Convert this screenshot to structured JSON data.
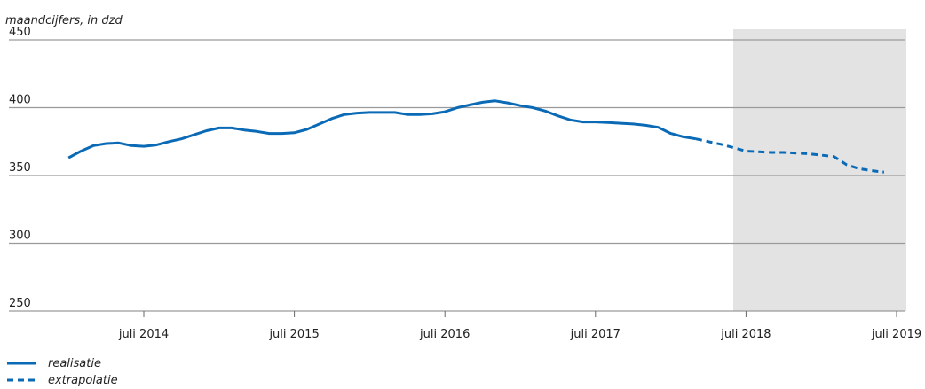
{
  "chart_data": {
    "type": "line",
    "unit_label": "maandcijfers, in dzd",
    "ylim": [
      250,
      450
    ],
    "yticks": [
      250,
      300,
      350,
      400,
      450
    ],
    "xlim": [
      "2013-12",
      "2019-07"
    ],
    "xticks": [
      {
        "label": "juli 2014",
        "date": "2014-07"
      },
      {
        "label": "juli 2015",
        "date": "2015-07"
      },
      {
        "label": "juli 2016",
        "date": "2016-07"
      },
      {
        "label": "juli 2017",
        "date": "2017-07"
      },
      {
        "label": "juli 2018",
        "date": "2018-07"
      },
      {
        "label": "juli 2019",
        "date": "2019-07"
      }
    ],
    "shaded_region": {
      "from": "2018-07",
      "to": "2019-07",
      "color": "#e3e3e3"
    },
    "grid": true,
    "legend_position": "bottom-left",
    "series": [
      {
        "name": "realisatie",
        "style": "solid",
        "color": "#0a6ab6",
        "points": [
          [
            "2014-01",
            363
          ],
          [
            "2014-02",
            368
          ],
          [
            "2014-03",
            372
          ],
          [
            "2014-04",
            373.5
          ],
          [
            "2014-05",
            374
          ],
          [
            "2014-06",
            372
          ],
          [
            "2014-07",
            371.5
          ],
          [
            "2014-08",
            372.5
          ],
          [
            "2014-09",
            375
          ],
          [
            "2014-10",
            377
          ],
          [
            "2014-11",
            380
          ],
          [
            "2014-12",
            383
          ],
          [
            "2015-01",
            385
          ],
          [
            "2015-02",
            385
          ],
          [
            "2015-03",
            383.5
          ],
          [
            "2015-04",
            382.5
          ],
          [
            "2015-05",
            381
          ],
          [
            "2015-06",
            381
          ],
          [
            "2015-07",
            381.5
          ],
          [
            "2015-08",
            384
          ],
          [
            "2015-09",
            388
          ],
          [
            "2015-10",
            392
          ],
          [
            "2015-11",
            395
          ],
          [
            "2015-12",
            396
          ],
          [
            "2016-01",
            396.5
          ],
          [
            "2016-02",
            396.5
          ],
          [
            "2016-03",
            396.5
          ],
          [
            "2016-04",
            395
          ],
          [
            "2016-05",
            395
          ],
          [
            "2016-06",
            395.5
          ],
          [
            "2016-07",
            397
          ],
          [
            "2016-08",
            400
          ],
          [
            "2016-09",
            402
          ],
          [
            "2016-10",
            404
          ],
          [
            "2016-11",
            405
          ],
          [
            "2016-12",
            403.5
          ],
          [
            "2017-01",
            401.5
          ],
          [
            "2017-02",
            400
          ],
          [
            "2017-03",
            397.5
          ],
          [
            "2017-04",
            394
          ],
          [
            "2017-05",
            391
          ],
          [
            "2017-06",
            389.5
          ],
          [
            "2017-07",
            389.5
          ],
          [
            "2017-08",
            389
          ],
          [
            "2017-09",
            388.5
          ],
          [
            "2017-10",
            388
          ],
          [
            "2017-11",
            387
          ],
          [
            "2017-12",
            385.5
          ],
          [
            "2018-01",
            381
          ],
          [
            "2018-02",
            378.5
          ],
          [
            "2018-03",
            377
          ]
        ]
      },
      {
        "name": "extrapolatie",
        "style": "dashed",
        "color": "#0a6ab6",
        "points": [
          [
            "2018-03",
            377
          ],
          [
            "2018-04",
            375
          ],
          [
            "2018-05",
            373
          ],
          [
            "2018-06",
            370.5
          ],
          [
            "2018-07",
            368
          ],
          [
            "2018-08",
            367.5
          ],
          [
            "2018-09",
            367
          ],
          [
            "2018-10",
            367
          ],
          [
            "2018-11",
            366.5
          ],
          [
            "2018-12",
            366
          ],
          [
            "2019-01",
            365
          ],
          [
            "2019-02",
            364
          ],
          [
            "2019-03",
            358
          ],
          [
            "2019-04",
            355
          ],
          [
            "2019-05",
            353.5
          ],
          [
            "2019-06",
            352.5
          ]
        ]
      }
    ]
  }
}
